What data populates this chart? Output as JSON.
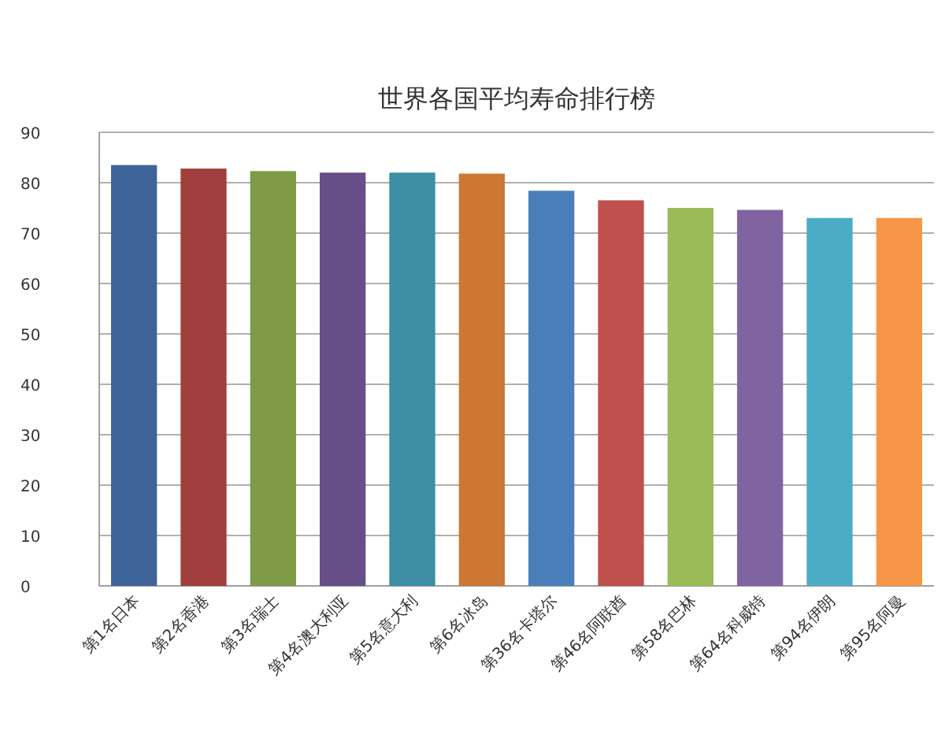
{
  "chart_data": {
    "type": "bar",
    "title": "世界各国平均寿命排行榜",
    "categories": [
      "第1名日本",
      "第2名香港",
      "第3名瑞士",
      "第4名澳大利亚",
      "第5名意大利",
      "第6名冰岛",
      "第36名卡塔尔",
      "第46名阿联酋",
      "第58名巴林",
      "第64名科威特",
      "第94名伊朗",
      "第95名阿曼"
    ],
    "values": [
      83.5,
      82.8,
      82.3,
      82,
      82,
      81.8,
      78.4,
      76.5,
      75,
      74.6,
      73,
      73
    ],
    "colors": [
      "#3f6499",
      "#a03f3d",
      "#7f9b47",
      "#664f86",
      "#3b8ea4",
      "#cc7733",
      "#4a7ebb",
      "#c0504d",
      "#9bbb59",
      "#8064a2",
      "#4bacc6",
      "#f79646"
    ],
    "ylim": [
      0,
      90
    ],
    "yticks": [
      0,
      10,
      20,
      30,
      40,
      50,
      60,
      70,
      80,
      90
    ],
    "grid": true
  }
}
